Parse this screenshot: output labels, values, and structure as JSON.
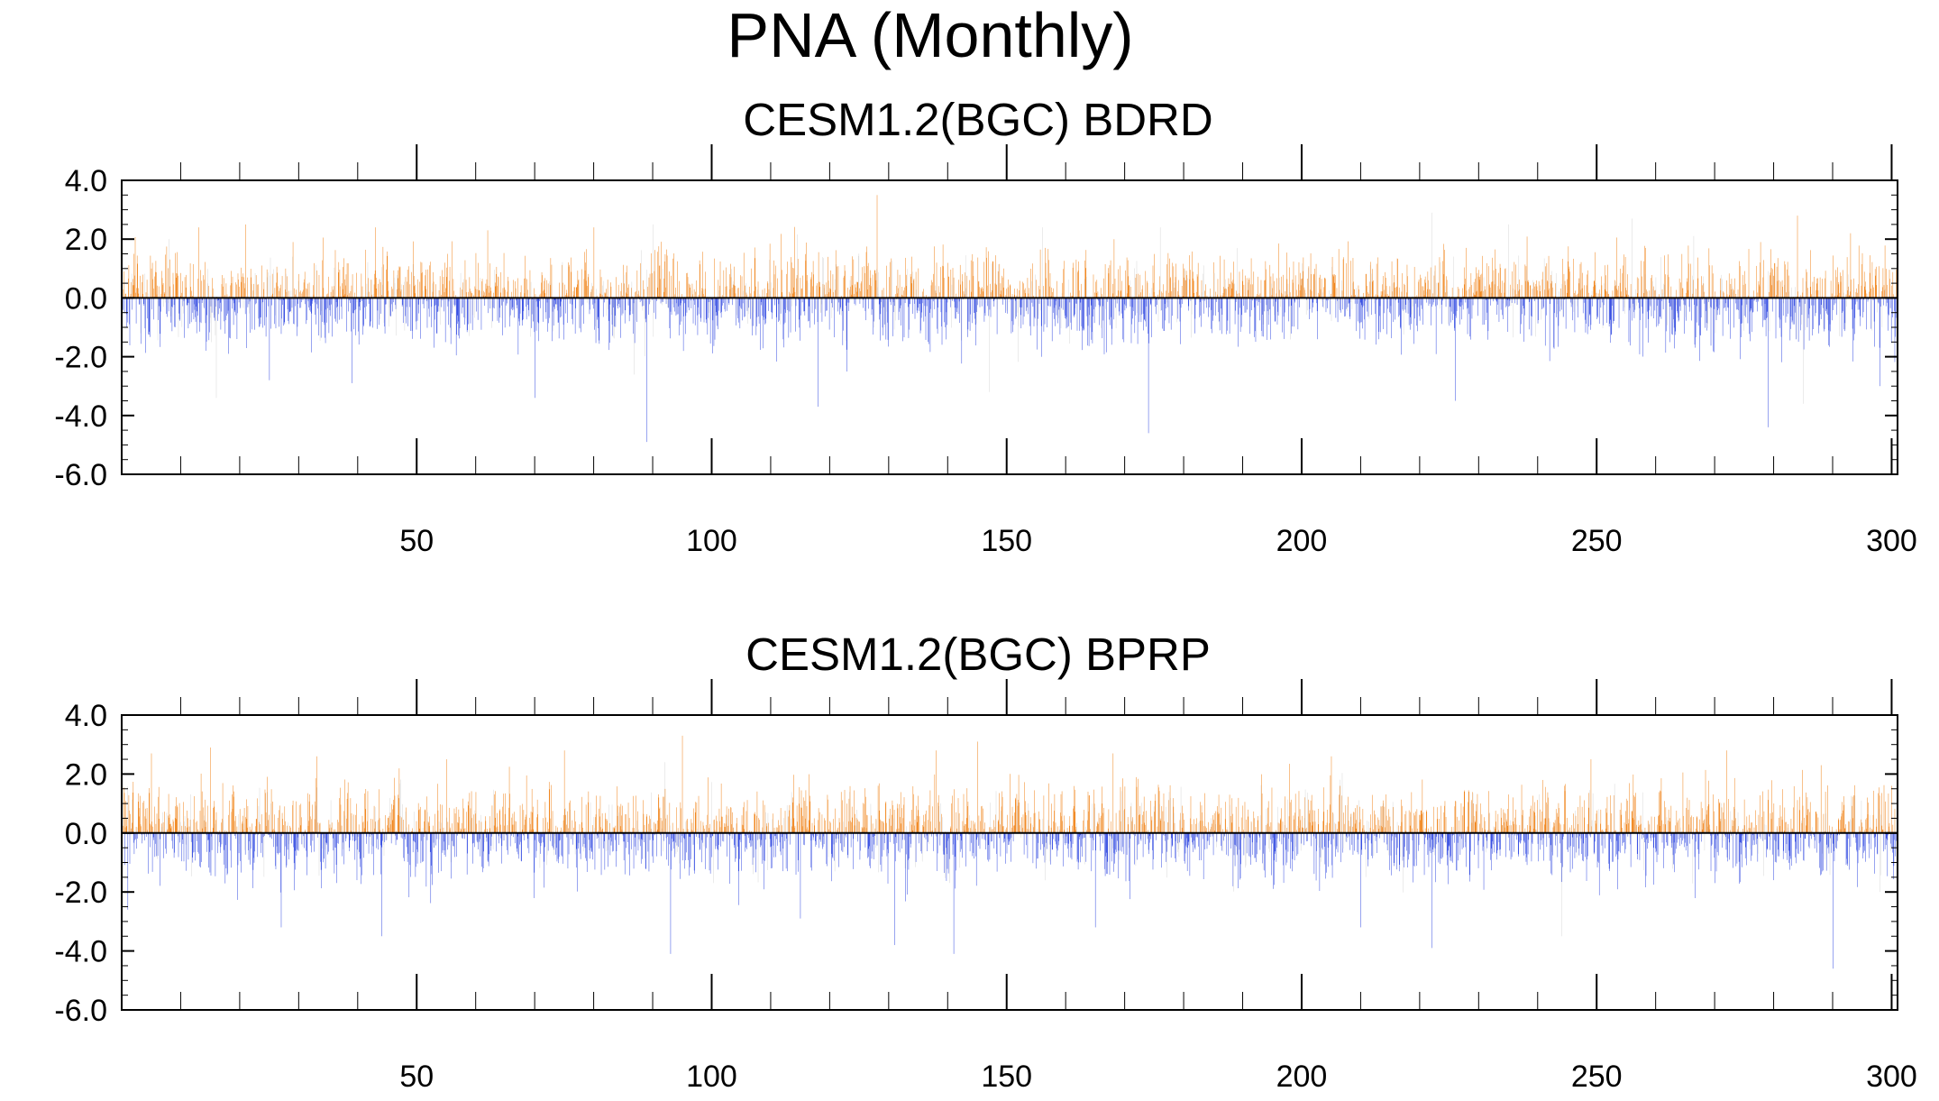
{
  "figure": {
    "title": "PNA (Monthly)"
  },
  "colors": {
    "positive": "#f07f11",
    "negative": "#2d45e0",
    "faint": "#d6d6d6"
  },
  "chart_data": [
    {
      "type": "bar",
      "title": "CESM1.2(BGC) BDRD",
      "xlabel": "",
      "ylabel": "",
      "xlim": [
        0,
        301
      ],
      "ylim": [
        -6.0,
        4.0
      ],
      "x_ticks": [
        50,
        100,
        150,
        200,
        250,
        300
      ],
      "x_tick_labels": [
        "50",
        "100",
        "150",
        "200",
        "250",
        "300"
      ],
      "y_ticks": [
        4.0,
        2.0,
        0.0,
        -2.0,
        -4.0,
        -6.0
      ],
      "y_tick_labels": [
        "4.0",
        "2.0",
        "0.0",
        "-2.0",
        "-4.0",
        "-6.0"
      ],
      "series_note": "Monthly PNA index over ~301 years; bars above zero orange, below zero blue.",
      "seed": 1234,
      "positive_max": 3.5,
      "negative_min": -4.9,
      "n_points": 3612,
      "peaks": [
        {
          "x": 2,
          "value": 1.5
        },
        {
          "x": 5,
          "value": 1.0
        },
        {
          "x": 8,
          "value": 2.0
        },
        {
          "x": 13,
          "value": 2.4
        },
        {
          "x": 21,
          "value": 2.5
        },
        {
          "x": 29,
          "value": 1.9
        },
        {
          "x": 43,
          "value": 2.4
        },
        {
          "x": 62,
          "value": 2.3
        },
        {
          "x": 80,
          "value": 2.4
        },
        {
          "x": 90,
          "value": 2.5
        },
        {
          "x": 128,
          "value": 3.5
        },
        {
          "x": 156,
          "value": 2.4
        },
        {
          "x": 176,
          "value": 2.4
        },
        {
          "x": 222,
          "value": 2.9
        },
        {
          "x": 235,
          "value": 2.5
        },
        {
          "x": 256,
          "value": 2.7
        },
        {
          "x": 284,
          "value": 2.8
        },
        {
          "x": 293,
          "value": 2.2
        },
        {
          "x": 16,
          "value": -3.4
        },
        {
          "x": 25,
          "value": -2.8
        },
        {
          "x": 39,
          "value": -2.9
        },
        {
          "x": 70,
          "value": -3.4
        },
        {
          "x": 89,
          "value": -4.9
        },
        {
          "x": 118,
          "value": -3.7
        },
        {
          "x": 147,
          "value": -3.2
        },
        {
          "x": 174,
          "value": -4.6
        },
        {
          "x": 226,
          "value": -3.5
        },
        {
          "x": 279,
          "value": -4.4
        },
        {
          "x": 285,
          "value": -3.6
        },
        {
          "x": 298,
          "value": -3.0
        }
      ]
    },
    {
      "type": "bar",
      "title": "CESM1.2(BGC) BPRP",
      "xlabel": "",
      "ylabel": "",
      "xlim": [
        0,
        301
      ],
      "ylim": [
        -6.0,
        4.0
      ],
      "x_ticks": [
        50,
        100,
        150,
        200,
        250,
        300
      ],
      "x_tick_labels": [
        "50",
        "100",
        "150",
        "200",
        "250",
        "300"
      ],
      "y_ticks": [
        4.0,
        2.0,
        0.0,
        -2.0,
        -4.0,
        -6.0
      ],
      "y_tick_labels": [
        "4.0",
        "2.0",
        "0.0",
        "-2.0",
        "-4.0",
        "-6.0"
      ],
      "series_note": "Monthly PNA index over ~301 years; bars above zero orange, below zero blue.",
      "seed": 98765,
      "positive_max": 3.3,
      "negative_min": -4.6,
      "n_points": 3612,
      "peaks": [
        {
          "x": 5,
          "value": 2.7
        },
        {
          "x": 15,
          "value": 2.9
        },
        {
          "x": 33,
          "value": 2.6
        },
        {
          "x": 55,
          "value": 2.5
        },
        {
          "x": 75,
          "value": 2.8
        },
        {
          "x": 92,
          "value": 2.4
        },
        {
          "x": 95,
          "value": 3.3
        },
        {
          "x": 138,
          "value": 2.8
        },
        {
          "x": 145,
          "value": 3.1
        },
        {
          "x": 168,
          "value": 2.7
        },
        {
          "x": 205,
          "value": 2.6
        },
        {
          "x": 249,
          "value": 2.5
        },
        {
          "x": 272,
          "value": 2.8
        },
        {
          "x": 288,
          "value": 2.3
        },
        {
          "x": 300,
          "value": 1.6
        },
        {
          "x": 1,
          "value": -2.6
        },
        {
          "x": 27,
          "value": -3.2
        },
        {
          "x": 44,
          "value": -3.5
        },
        {
          "x": 93,
          "value": -4.1
        },
        {
          "x": 115,
          "value": -2.9
        },
        {
          "x": 131,
          "value": -3.8
        },
        {
          "x": 141,
          "value": -4.1
        },
        {
          "x": 165,
          "value": -3.2
        },
        {
          "x": 210,
          "value": -3.2
        },
        {
          "x": 222,
          "value": -3.9
        },
        {
          "x": 244,
          "value": -3.5
        },
        {
          "x": 290,
          "value": -4.6
        },
        {
          "x": 298,
          "value": -2.0
        }
      ]
    }
  ]
}
